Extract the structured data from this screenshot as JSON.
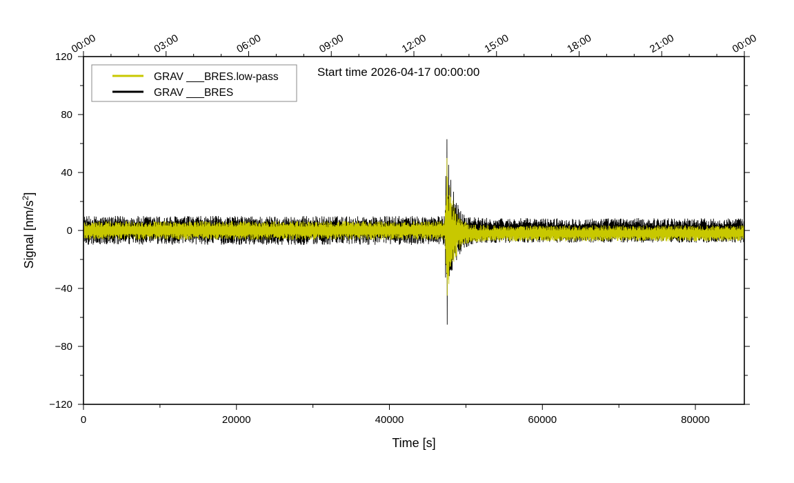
{
  "chart_data": {
    "type": "line",
    "annotation": "Start time 2026-04-17 00:00:00",
    "xlabel": "Time [s]",
    "ylabel_main": "Signal [nm/s",
    "ylabel_sup": "2",
    "ylabel_close": "]",
    "xlim": [
      0,
      86400
    ],
    "ylim": [
      -120,
      120
    ],
    "x_ticks": [
      0,
      20000,
      40000,
      60000,
      80000
    ],
    "x_tick_labels": [
      "0",
      "20000",
      "40000",
      "60000",
      "80000"
    ],
    "y_ticks": [
      -120,
      -80,
      -40,
      0,
      40,
      80,
      120
    ],
    "y_tick_labels": [
      "−120",
      "−80",
      "−40",
      "0",
      "40",
      "80",
      "120"
    ],
    "top_ticks_seconds": [
      0,
      10800,
      21600,
      32400,
      43200,
      54000,
      64800,
      75600,
      86400
    ],
    "top_tick_labels": [
      "00:00",
      "03:00",
      "06:00",
      "09:00",
      "12:00",
      "15:00",
      "18:00",
      "21:00",
      "00:00"
    ],
    "legend_position": "top-left",
    "event_time_s": 47500,
    "series": [
      {
        "name": "GRAV ___BRES.low-pass",
        "color": "#c8c800",
        "noise_amplitude": 6.5,
        "offset_after_event": -2,
        "peak_max": 50,
        "peak_min": -45
      },
      {
        "name": "GRAV ___BRES",
        "color": "#000000",
        "noise_amplitude": 10,
        "offset_after_event": 0,
        "peak_max": 63,
        "peak_min": -65
      }
    ]
  }
}
